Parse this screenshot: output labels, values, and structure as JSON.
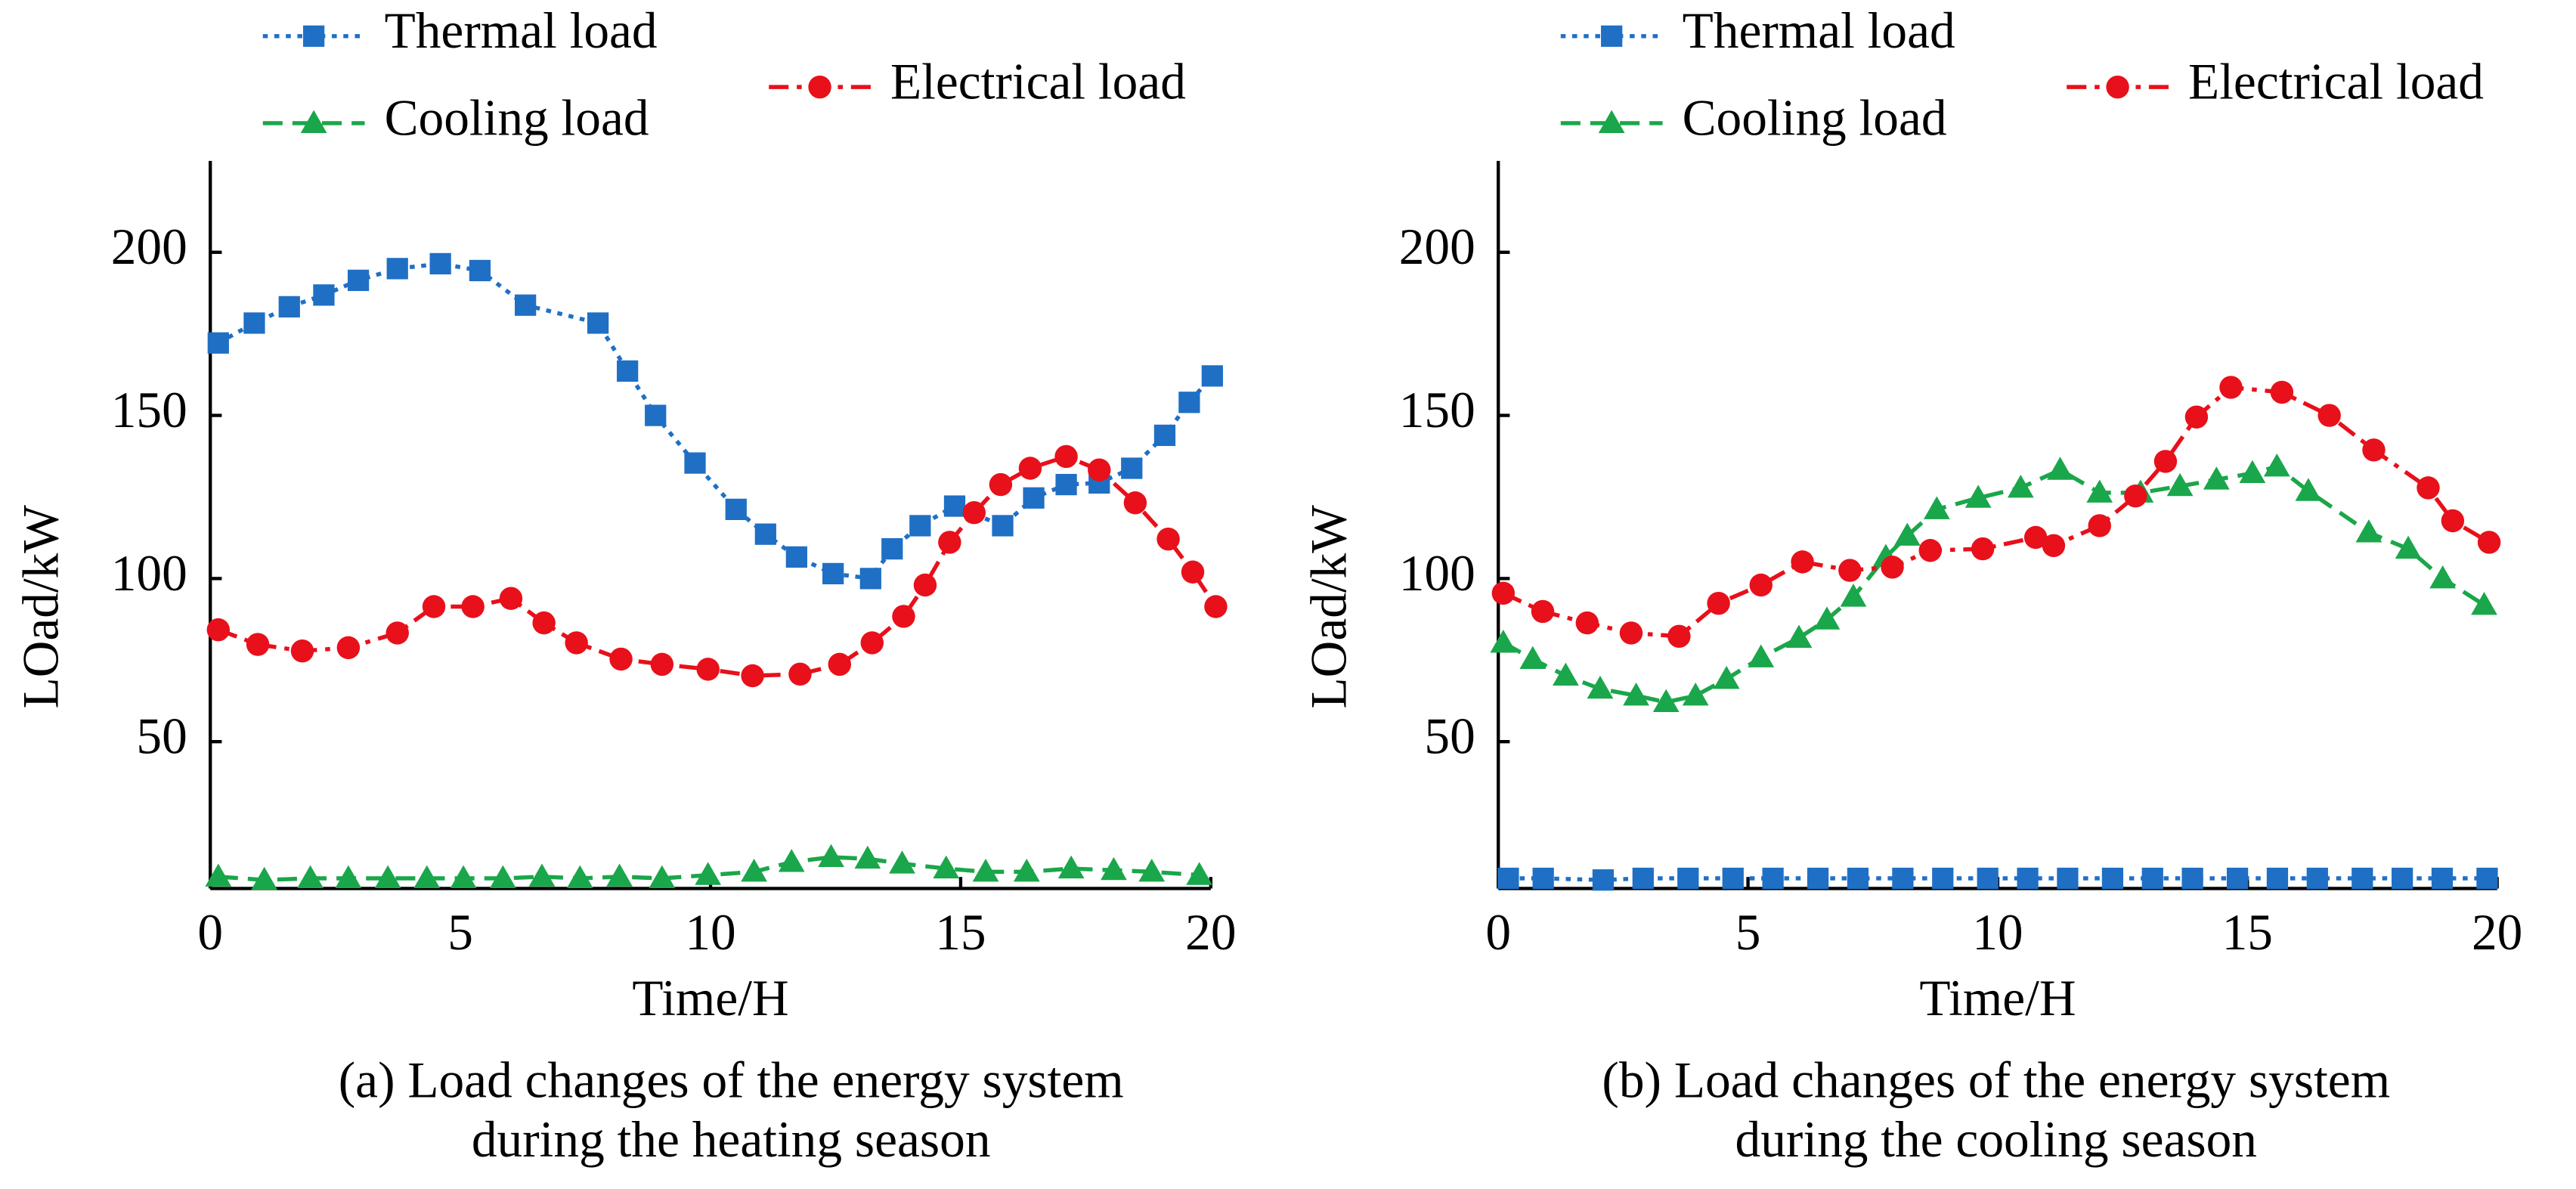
{
  "chart_data": [
    {
      "type": "line",
      "xlabel": "Time/H",
      "ylabel": "LOad/kW",
      "caption": [
        "(a) Load changes of the energy system",
        "during the heating season"
      ],
      "xlim": [
        0,
        20
      ],
      "xticks": [
        0,
        5,
        10,
        15,
        20
      ],
      "ylim": [
        5,
        228
      ],
      "yticks": [
        50,
        100,
        150,
        200
      ],
      "series": [
        {
          "name": "Thermal load",
          "color": "#1f6fc5",
          "marker": "square",
          "linestyle": "dotted",
          "x": [
            0.16,
            0.88,
            1.58,
            2.27,
            2.96,
            3.74,
            4.6,
            5.39,
            6.3,
            7.75,
            8.34,
            8.9,
            9.69,
            10.51,
            11.1,
            11.72,
            12.45,
            13.2,
            13.63,
            14.19,
            14.88,
            15.84,
            16.46,
            17.11,
            17.77,
            18.42,
            19.08,
            19.57,
            20.03
          ],
          "values": [
            172.2,
            178.3,
            183.3,
            186.9,
            191.4,
            195,
            196.5,
            194.4,
            183.8,
            178.3,
            163.6,
            150,
            135.4,
            121.2,
            113.6,
            106.6,
            101.5,
            100,
            109.1,
            116.2,
            122.2,
            116.2,
            124.7,
            128.8,
            129.3,
            133.8,
            143.9,
            154,
            162.1
          ]
        },
        {
          "name": "Cooling load",
          "color": "#1aa64a",
          "marker": "triangle",
          "linestyle": "dashed",
          "x": [
            0.16,
            1.08,
            2,
            2.76,
            3.55,
            4.33,
            5.06,
            5.85,
            6.63,
            7.39,
            8.18,
            9.03,
            9.95,
            10.87,
            11.62,
            12.41,
            13.14,
            13.83,
            14.71,
            15.5,
            16.32,
            17.21,
            18.06,
            18.82,
            19.77
          ],
          "values": [
            8.6,
            7.6,
            8.1,
            8.1,
            8.1,
            8.1,
            8.1,
            8.1,
            8.6,
            8.1,
            8.6,
            8.1,
            9.1,
            10.1,
            13.1,
            14.6,
            14.1,
            12.6,
            11.1,
            10.1,
            10.1,
            11.1,
            10.6,
            10.1,
            9.1
          ]
        },
        {
          "name": "Electrical load",
          "color": "#e8101a",
          "marker": "circle",
          "linestyle": "dashdot",
          "x": [
            0.16,
            0.95,
            1.84,
            2.76,
            3.74,
            4.47,
            5.25,
            6.01,
            6.67,
            7.32,
            8.21,
            9.03,
            9.95,
            10.84,
            11.79,
            12.58,
            13.23,
            13.86,
            14.29,
            14.78,
            15.27,
            15.8,
            16.39,
            17.11,
            17.77,
            18.49,
            19.15,
            19.64,
            20.1
          ],
          "values": [
            84.3,
            79.8,
            77.8,
            78.8,
            83.3,
            91.4,
            91.4,
            93.9,
            86.4,
            80.3,
            75.3,
            73.7,
            72.2,
            70.2,
            70.7,
            73.7,
            80.3,
            88.4,
            98,
            111.1,
            120.2,
            128.8,
            133.8,
            137.4,
            133.3,
            123.2,
            112.1,
            102,
            91.4
          ]
        }
      ]
    },
    {
      "type": "line",
      "xlabel": "Time/H",
      "ylabel": "LOad/kW",
      "caption": [
        "(b) Load changes of the energy system",
        "during the cooling season"
      ],
      "xlim": [
        0,
        20
      ],
      "xticks": [
        0,
        5,
        10,
        15,
        20
      ],
      "ylim": [
        5,
        228
      ],
      "yticks": [
        50,
        100,
        150,
        200
      ],
      "series": [
        {
          "name": "Thermal load",
          "color": "#1f6fc5",
          "marker": "square",
          "linestyle": "dotted",
          "x": [
            0.2,
            0.9,
            2.1,
            2.9,
            3.8,
            4.7,
            5.5,
            6.4,
            7.2,
            8.1,
            8.9,
            9.8,
            10.6,
            11.4,
            12.3,
            13.1,
            13.9,
            14.8,
            15.6,
            16.4,
            17.3,
            18.1,
            18.9,
            19.8
          ],
          "values": [
            8.1,
            8.1,
            7.6,
            8.1,
            8.1,
            8.1,
            8.1,
            8.1,
            8.1,
            8.1,
            8.1,
            8.1,
            8.1,
            8.1,
            8.1,
            8.1,
            8.1,
            8.1,
            8.1,
            8.1,
            8.1,
            8.1,
            8.1,
            8.1
          ]
        },
        {
          "name": "Cooling load",
          "color": "#1aa64a",
          "marker": "triangle",
          "linestyle": "dashed",
          "x": [
            0.1,
            0.69,
            1.35,
            2.04,
            2.76,
            3.36,
            3.95,
            4.57,
            5.26,
            6.02,
            6.58,
            7.11,
            7.76,
            8.19,
            8.78,
            9.61,
            10.46,
            11.25,
            12.04,
            12.86,
            13.65,
            14.38,
            15.1,
            15.59,
            16.22,
            17.43,
            18.22,
            18.91,
            19.74
          ],
          "values": [
            80.3,
            75.3,
            70.2,
            66.2,
            64.1,
            62.1,
            64.1,
            69.2,
            75.8,
            81.8,
            87.4,
            94.4,
            106.6,
            113.1,
            121.2,
            124.7,
            127.8,
            133.3,
            126.3,
            126.3,
            128.3,
            130.3,
            132.3,
            134.3,
            126.8,
            114.1,
            109.1,
            100,
            91.9
          ]
        },
        {
          "name": "Electrical load",
          "color": "#e8101a",
          "marker": "circle",
          "linestyle": "dashdot",
          "x": [
            0.1,
            0.89,
            1.78,
            2.66,
            3.62,
            4.41,
            5.26,
            6.09,
            7.04,
            7.89,
            8.65,
            9.7,
            10.76,
            11.12,
            12.04,
            12.76,
            13.36,
            13.98,
            14.67,
            15.69,
            16.64,
            17.53,
            18.62,
            19.11,
            19.84
          ],
          "values": [
            95.5,
            89.9,
            86.4,
            83.3,
            82.3,
            92.4,
            98,
            105.1,
            102.5,
            103.5,
            108.6,
            109.1,
            112.6,
            110.1,
            116.2,
            125.3,
            135.9,
            149.5,
            158.6,
            157.1,
            150,
            139.4,
            127.8,
            117.7,
            111.1
          ]
        }
      ]
    }
  ]
}
